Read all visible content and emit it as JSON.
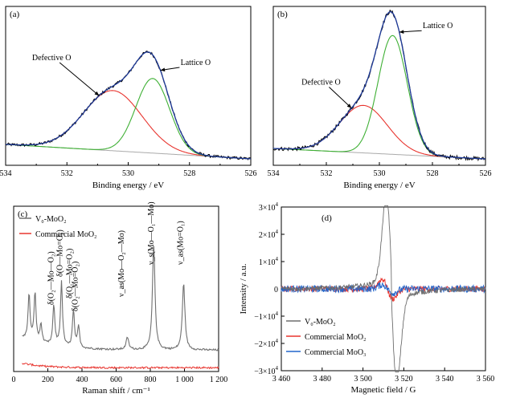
{
  "chart_data": [
    {
      "panel": "(a)",
      "type": "line",
      "xlabel": "Binding energy / eV",
      "ylabel": "",
      "xlim": [
        534,
        526
      ],
      "xticks": [
        534,
        532,
        530,
        528,
        526
      ],
      "peaks": [
        {
          "name": "Defective O",
          "center": 530.5,
          "height": 0.5,
          "width": 0.95
        },
        {
          "name": "Lattice O",
          "center": 529.2,
          "height": 0.62,
          "width": 0.55
        }
      ],
      "baseline": [
        {
          "x": 534,
          "y": 0.12
        },
        {
          "x": 526,
          "y": 0.0
        }
      ],
      "annotations": [
        {
          "text": "Defective O",
          "x": 532.5,
          "y": 0.82
        },
        {
          "text": "Lattice O",
          "x": 527.8,
          "y": 0.78
        }
      ],
      "colors": {
        "raw": "#000000",
        "fit": "#1f3b9a",
        "defective": "#e8352f",
        "lattice": "#3fb035",
        "baseline": "#aaaaaa"
      }
    },
    {
      "panel": "(b)",
      "type": "line",
      "xlabel": "Binding energy / eV",
      "ylabel": "",
      "xlim": [
        534,
        526
      ],
      "xticks": [
        534,
        532,
        530,
        528,
        526
      ],
      "peaks": [
        {
          "name": "Defective O",
          "center": 530.6,
          "height": 0.32,
          "width": 0.9
        },
        {
          "name": "Lattice O",
          "center": 529.5,
          "height": 0.8,
          "width": 0.55
        }
      ],
      "baseline": [
        {
          "x": 534,
          "y": 0.07
        },
        {
          "x": 526,
          "y": 0.0
        }
      ],
      "annotations": [
        {
          "text": "Defective O",
          "x": 532.2,
          "y": 0.5
        },
        {
          "text": "Lattice O",
          "x": 527.8,
          "y": 0.88
        }
      ],
      "colors": {
        "raw": "#000000",
        "fit": "#1f3b9a",
        "defective": "#e8352f",
        "lattice": "#3fb035",
        "baseline": "#aaaaaa"
      }
    },
    {
      "panel": "(c)",
      "type": "line",
      "xlabel": "Raman shift / cm⁻¹",
      "ylabel": "",
      "xlim": [
        0,
        1200
      ],
      "xticks": [
        0,
        200,
        400,
        600,
        800,
        1000,
        1200
      ],
      "xtick_labels": [
        "0",
        "200",
        "400",
        "600",
        "800",
        "1 000",
        "1 200"
      ],
      "series": [
        {
          "name": "V₀-MoO₂",
          "color": "#707070"
        },
        {
          "name": "Commercial MoO₂",
          "color": "#e8352f"
        }
      ],
      "peaks_vo": [
        {
          "x": 90,
          "h": 0.4
        },
        {
          "x": 125,
          "h": 0.42
        },
        {
          "x": 160,
          "h": 0.22
        },
        {
          "x": 235,
          "h": 0.36
        },
        {
          "x": 280,
          "h": 0.52
        },
        {
          "x": 350,
          "h": 0.34
        },
        {
          "x": 380,
          "h": 0.24
        },
        {
          "x": 666,
          "h": 0.18
        },
        {
          "x": 820,
          "h": 0.78
        },
        {
          "x": 995,
          "h": 0.54
        }
      ],
      "annotations": [
        {
          "text": "δ(O₂—Mo—O₂)",
          "x": 232
        },
        {
          "text": "δ(O—Mo=O₁)",
          "x": 285
        },
        {
          "text": "δ(O₁—Mo=O₂)",
          "x": 340
        },
        {
          "text": "δ(O₂—Mo=O₂)",
          "x": 375
        },
        {
          "text": "ν_as(Mo—O₂—Mo)",
          "x": 645
        },
        {
          "text": "ν_s(Mo—O₁—Mo)",
          "x": 818
        },
        {
          "text": "ν_as(Mo=O₁)",
          "x": 990
        }
      ]
    },
    {
      "panel": "(d)",
      "type": "line",
      "xlabel": "Magnetic field / G",
      "ylabel": "Intensity / a.u.",
      "xlim": [
        3460,
        3560
      ],
      "ylim": [
        -30000,
        30000
      ],
      "xticks": [
        3460,
        3480,
        3500,
        3520,
        3540,
        3560
      ],
      "xtick_labels": [
        "3 460",
        "3 480",
        "3 500",
        "3 520",
        "3 540",
        "3 560"
      ],
      "yticks": [
        30000,
        20000,
        10000,
        0,
        -10000,
        -20000,
        -30000
      ],
      "ytick_labels": [
        {
          "m": "3×10",
          "e": "4"
        },
        {
          "m": "2×10",
          "e": "4"
        },
        {
          "m": "1×10",
          "e": "4"
        },
        {
          "m": "0",
          "e": ""
        },
        {
          "m": "−1×10",
          "e": "4"
        },
        {
          "m": "−2×10",
          "e": "4"
        },
        {
          "m": "−3×10",
          "e": "4"
        }
      ],
      "series": [
        {
          "name": "V₀-MoO₂",
          "color": "#6e6e6e",
          "signal_center": 3514,
          "amplitude": 30000
        },
        {
          "name": "Commercial MoO₂",
          "color": "#e8352f",
          "signal_center": 3512,
          "amplitude": 3500
        },
        {
          "name": "Commercial MoO₃",
          "color": "#2266cc",
          "signal_center": 3512,
          "amplitude": 1500
        }
      ]
    }
  ]
}
